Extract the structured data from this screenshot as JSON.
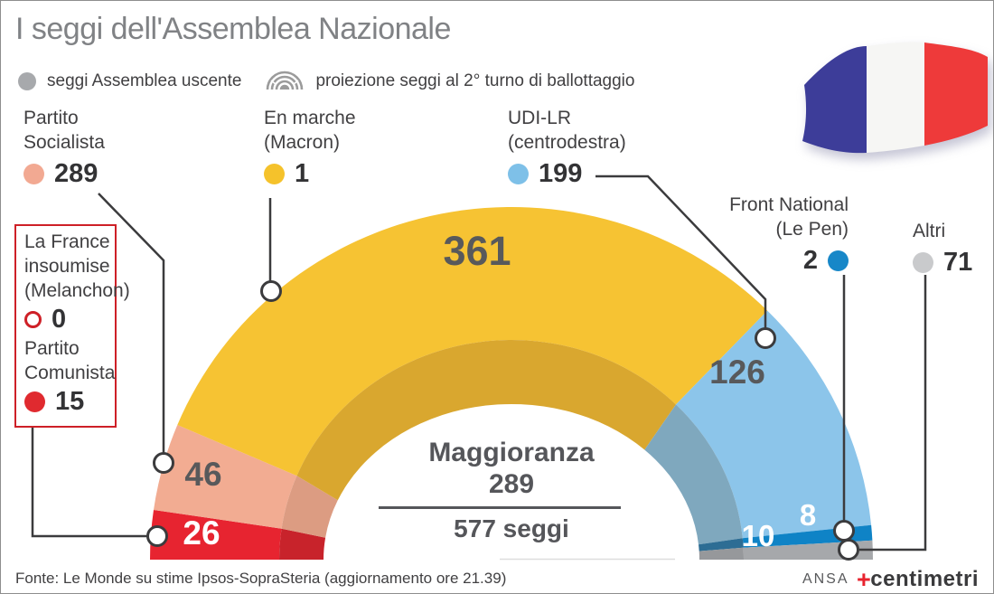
{
  "title": "I seggi dell'Assemblea Nazionale",
  "legend": {
    "dot_icon": "circle-icon",
    "dot_color": "#A7A9AC",
    "uscente_label": "seggi Assemblea uscente",
    "proiezione_icon": "hemicycle-icon",
    "proiezione_label": "proiezione seggi al 2° turno di ballottaggio"
  },
  "parties": [
    {
      "name_lines": [
        "Partito",
        "Socialista"
      ],
      "uscente": 289,
      "dot_color": "#F2A992"
    },
    {
      "name_lines": [
        "En marche",
        "(Macron)"
      ],
      "uscente": 1,
      "dot_color": "#F5C22B"
    },
    {
      "name_lines": [
        "UDI-LR",
        "(centrodestra)"
      ],
      "uscente": 199,
      "dot_color": "#7EC0E8"
    },
    {
      "name_lines": [
        "Front National",
        "(Le Pen)"
      ],
      "uscente": 2,
      "dot_color": "#1787C8"
    },
    {
      "name_lines": [
        "Altri"
      ],
      "uscente": 71,
      "dot_color": "#C9CACC"
    },
    {
      "name_lines": [
        "La France",
        "insoumise",
        "(Melanchon)"
      ],
      "uscente": 0,
      "dot_color": "#FFFFFF",
      "dot_border": "#CE2027"
    },
    {
      "name_lines": [
        "Partito",
        "Comunista"
      ],
      "uscente": 15,
      "dot_color": "#E02A2F"
    }
  ],
  "chart_data": {
    "type": "half-donut",
    "title": "I seggi dell'Assemblea Nazionale",
    "unit": "seggi",
    "total": 577,
    "total_label": "577 seggi",
    "majority_label": "Maggioranza",
    "majority_value": 289,
    "note": "outer bright ring and inner dark ring form a 3D hemicycle; values are projected seats at 2nd round",
    "segments": [
      {
        "party": "La France insoumise + Partito Comunista",
        "projected": 26,
        "color": "#E72430",
        "inner_color": "#C8232B",
        "label_color": "#FFFFFF"
      },
      {
        "party": "Partito Socialista",
        "projected": 46,
        "color": "#F2AC92",
        "inner_color": "#DC9C82",
        "label_color": "#58595B"
      },
      {
        "party": "En marche (Macron)",
        "projected": 361,
        "color": "#F6C333",
        "inner_color": "#D9A72F",
        "label_color": "#58595B"
      },
      {
        "party": "UDI-LR (centrodestra)",
        "projected": 126,
        "color": "#8CC5EA",
        "inner_color": "#7FA8BE",
        "label_color": "#58595B"
      },
      {
        "party": "Front National (Le Pen)",
        "projected": 8,
        "color": "#0F83C6",
        "inner_color": "#2D6D94",
        "label_color": "#FFFFFF"
      },
      {
        "party": "Altri",
        "projected": 10,
        "color": "#A6A8AB",
        "inner_color": "#96989B",
        "label_color": "#FFFFFF"
      }
    ]
  },
  "flag": {
    "name": "french-flag",
    "blue": "#3D3D99",
    "white": "#F6F6F4",
    "red": "#EE3A3A"
  },
  "footer": {
    "source": "Fonte: Le Monde su stime Ipsos-SopraSteria (aggiornamento ore 21.39)",
    "credit_agency": "ANSA",
    "credit_symbol": "+",
    "credit_brand": "centimetri"
  }
}
